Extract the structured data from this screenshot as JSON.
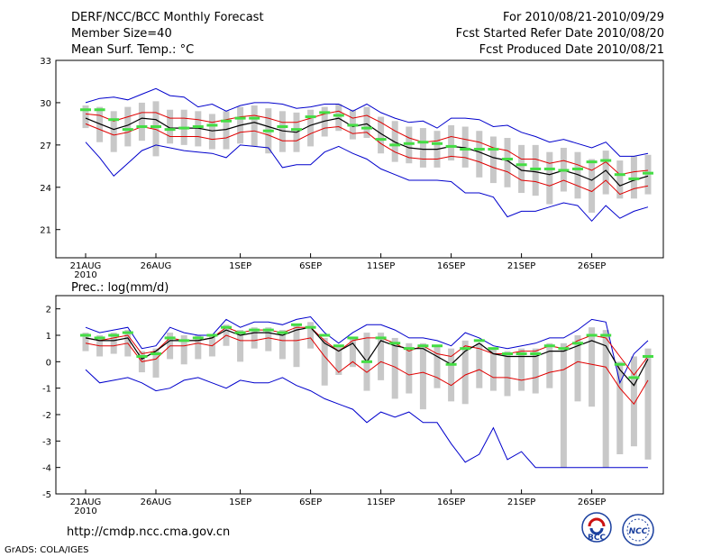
{
  "header": {
    "title": "DERF/NCC/BCC Monthly Forecast",
    "member_size": "Member Size=40",
    "variable": "Mean Surf. Temp.: °C",
    "period": "For 2010/08/21-2010/09/29",
    "started": "Fcst Started Refer Date 2010/08/20",
    "produced": "Fcst Produced Date 2010/08/21"
  },
  "footer": {
    "url": "http://cmdp.ncc.cma.gov.cn",
    "grads": "GrADS: COLA/IGES",
    "logo_bcc": "BCC",
    "logo_ncc": "NCC"
  },
  "colors": {
    "envelope": "#0000cc",
    "spread": "#e00000",
    "mean": "#000000",
    "bar": "#c8c8c8",
    "marker": "#44dd44"
  },
  "chart_data": [
    {
      "type": "line",
      "title": "Mean Surf. Temp.: °C",
      "xlabel": "",
      "ylabel": "°C",
      "x_start": "2010-08-21",
      "ylim": [
        19,
        33
      ],
      "yticks": [
        21,
        24,
        27,
        30,
        33
      ],
      "xticks": [
        {
          "day": 0,
          "label": "21AUG",
          "sub": "2010"
        },
        {
          "day": 5,
          "label": "26AUG"
        },
        {
          "day": 11,
          "label": "1SEP"
        },
        {
          "day": 16,
          "label": "6SEP"
        },
        {
          "day": 21,
          "label": "11SEP"
        },
        {
          "day": 26,
          "label": "16SEP"
        },
        {
          "day": 31,
          "label": "21SEP"
        },
        {
          "day": 36,
          "label": "26SEP"
        }
      ],
      "series": [
        {
          "name": "max",
          "values": [
            30.0,
            30.3,
            30.4,
            30.2,
            30.6,
            31.0,
            30.5,
            30.4,
            29.7,
            29.9,
            29.4,
            29.8,
            30.0,
            30.0,
            29.9,
            29.6,
            29.7,
            29.9,
            29.9,
            29.4,
            29.9,
            29.3,
            28.9,
            28.6,
            28.7,
            28.2,
            28.9,
            28.9,
            28.8,
            28.3,
            28.4,
            27.9,
            27.6,
            27.2,
            27.4,
            27.1,
            26.8,
            27.2,
            26.2,
            26.2,
            26.4
          ]
        },
        {
          "name": "upper",
          "values": [
            29.2,
            29.1,
            28.7,
            29.0,
            29.3,
            29.3,
            28.9,
            28.9,
            28.8,
            28.6,
            28.8,
            29.0,
            29.1,
            28.9,
            28.6,
            28.6,
            28.9,
            29.2,
            29.4,
            28.9,
            29.1,
            28.6,
            28.0,
            27.5,
            27.2,
            27.3,
            27.6,
            27.4,
            27.2,
            26.8,
            26.6,
            26.0,
            26.0,
            25.7,
            25.9,
            25.6,
            25.2,
            25.8,
            24.9,
            25.1,
            25.2
          ]
        },
        {
          "name": "mean",
          "values": [
            28.9,
            28.5,
            28.1,
            28.4,
            28.9,
            28.8,
            28.2,
            28.2,
            28.2,
            28.0,
            28.1,
            28.4,
            28.6,
            28.3,
            28.0,
            27.9,
            28.4,
            28.7,
            28.9,
            28.3,
            28.5,
            27.8,
            27.2,
            26.8,
            26.7,
            26.7,
            26.9,
            26.8,
            26.5,
            26.1,
            25.9,
            25.2,
            25.1,
            24.9,
            25.2,
            24.9,
            24.5,
            25.2,
            24.1,
            24.5,
            24.8
          ]
        },
        {
          "name": "lower",
          "values": [
            28.5,
            28.1,
            27.7,
            27.9,
            28.3,
            28.1,
            27.6,
            27.6,
            27.6,
            27.4,
            27.5,
            27.9,
            28.0,
            27.7,
            27.3,
            27.3,
            27.8,
            28.2,
            28.3,
            27.8,
            27.9,
            27.1,
            26.5,
            26.1,
            26.0,
            26.0,
            26.2,
            26.1,
            25.8,
            25.4,
            25.1,
            24.5,
            24.4,
            24.1,
            24.5,
            24.1,
            23.7,
            24.5,
            23.5,
            23.9,
            24.1
          ]
        },
        {
          "name": "min",
          "values": [
            27.2,
            26.1,
            24.8,
            25.7,
            26.6,
            27.0,
            26.8,
            26.6,
            26.5,
            26.4,
            26.1,
            27.0,
            26.9,
            26.8,
            25.4,
            25.6,
            25.6,
            26.5,
            26.9,
            26.4,
            26.0,
            25.3,
            24.9,
            24.5,
            24.5,
            24.5,
            24.4,
            23.6,
            23.6,
            23.3,
            21.9,
            22.3,
            22.3,
            22.6,
            22.9,
            22.7,
            21.6,
            22.7,
            21.8,
            22.3,
            22.6
          ]
        },
        {
          "name": "bar_top",
          "values": [
            29.8,
            29.7,
            29.4,
            29.7,
            30.0,
            30.1,
            29.5,
            29.5,
            29.4,
            29.2,
            29.4,
            29.7,
            29.8,
            29.6,
            29.4,
            29.3,
            29.5,
            29.7,
            29.9,
            29.5,
            29.7,
            29.0,
            28.7,
            28.3,
            28.2,
            28.0,
            28.4,
            28.3,
            28.0,
            27.6,
            27.5,
            27.0,
            27.0,
            26.5,
            26.8,
            26.5,
            26.0,
            26.6,
            25.9,
            26.2,
            26.3
          ]
        },
        {
          "name": "bar_bottom",
          "values": [
            28.2,
            27.2,
            26.5,
            26.9,
            27.3,
            26.2,
            27.1,
            27.0,
            26.9,
            26.7,
            26.7,
            27.1,
            26.9,
            26.4,
            26.5,
            26.5,
            26.9,
            27.6,
            28.0,
            27.4,
            27.5,
            26.4,
            25.8,
            25.7,
            25.4,
            25.4,
            25.9,
            25.4,
            24.7,
            24.3,
            24.0,
            23.6,
            23.4,
            22.8,
            23.7,
            23.2,
            22.2,
            23.5,
            23.2,
            23.2,
            23.5
          ]
        },
        {
          "name": "marker",
          "values": [
            29.5,
            29.5,
            28.8,
            28.1,
            28.3,
            28.3,
            28.1,
            28.2,
            28.3,
            28.4,
            28.7,
            28.9,
            28.9,
            28.0,
            28.3,
            28.1,
            29.0,
            29.3,
            29.1,
            28.4,
            28.2,
            27.4,
            27.0,
            27.1,
            27.2,
            27.1,
            26.9,
            26.7,
            26.7,
            26.7,
            26.0,
            25.6,
            25.3,
            25.3,
            25.2,
            25.3,
            25.8,
            25.9,
            24.9,
            24.6,
            25.0
          ]
        }
      ]
    },
    {
      "type": "line",
      "title": "Prec.: log(mm/d)",
      "xlabel": "",
      "ylabel": "log(mm/d)",
      "x_start": "2010-08-21",
      "ylim": [
        -5,
        2.5
      ],
      "yticks": [
        -5,
        -4,
        -3,
        -2,
        -1,
        0,
        1,
        2
      ],
      "xticks": [
        {
          "day": 0,
          "label": "21AUG",
          "sub": "2010"
        },
        {
          "day": 5,
          "label": "26AUG"
        },
        {
          "day": 11,
          "label": "1SEP"
        },
        {
          "day": 16,
          "label": "6SEP"
        },
        {
          "day": 21,
          "label": "11SEP"
        },
        {
          "day": 26,
          "label": "16SEP"
        },
        {
          "day": 31,
          "label": "21SEP"
        },
        {
          "day": 36,
          "label": "26SEP"
        }
      ],
      "series": [
        {
          "name": "max",
          "values": [
            1.3,
            1.1,
            1.2,
            1.3,
            0.5,
            0.6,
            1.3,
            1.1,
            1.0,
            1.0,
            1.6,
            1.3,
            1.5,
            1.5,
            1.4,
            1.6,
            1.7,
            1.1,
            0.7,
            1.1,
            1.4,
            1.4,
            1.2,
            0.9,
            0.9,
            0.8,
            0.6,
            1.1,
            0.9,
            0.6,
            0.5,
            0.6,
            0.7,
            0.9,
            0.9,
            1.2,
            1.6,
            1.5,
            -0.8,
            0.3,
            0.8
          ]
        },
        {
          "name": "upper",
          "values": [
            0.9,
            0.8,
            0.9,
            1.0,
            0.3,
            0.4,
            0.9,
            0.8,
            0.8,
            0.9,
            1.3,
            1.1,
            1.2,
            1.2,
            1.1,
            1.3,
            1.3,
            0.8,
            0.4,
            0.8,
            0.9,
            0.9,
            0.7,
            0.4,
            0.6,
            0.3,
            0.2,
            0.6,
            0.5,
            0.3,
            0.3,
            0.4,
            0.4,
            0.6,
            0.5,
            0.8,
            1.0,
            0.9,
            0.2,
            -0.5,
            0.2
          ]
        },
        {
          "name": "mean",
          "values": [
            0.9,
            0.8,
            0.8,
            0.9,
            0.1,
            0.4,
            0.8,
            0.8,
            0.8,
            0.9,
            1.2,
            1.0,
            1.1,
            1.1,
            1.0,
            1.2,
            1.3,
            0.7,
            0.4,
            0.7,
            0.0,
            0.8,
            0.6,
            0.5,
            0.5,
            0.2,
            -0.1,
            0.4,
            0.7,
            0.3,
            0.2,
            0.2,
            0.2,
            0.4,
            0.4,
            0.6,
            0.8,
            0.6,
            -0.3,
            -0.9,
            0.1
          ]
        },
        {
          "name": "lower",
          "values": [
            0.7,
            0.6,
            0.6,
            0.7,
            0.0,
            0.1,
            0.6,
            0.6,
            0.7,
            0.6,
            1.0,
            0.8,
            0.8,
            0.9,
            0.8,
            0.8,
            0.9,
            0.2,
            -0.4,
            0.0,
            -0.4,
            0.0,
            -0.2,
            -0.5,
            -0.4,
            -0.6,
            -0.9,
            -0.5,
            -0.3,
            -0.6,
            -0.6,
            -0.7,
            -0.6,
            -0.4,
            -0.3,
            0.0,
            -0.1,
            -0.2,
            -1.0,
            -1.6,
            -0.7
          ]
        },
        {
          "name": "min",
          "values": [
            -0.3,
            -0.8,
            -0.7,
            -0.6,
            -0.8,
            -1.1,
            -1.0,
            -0.7,
            -0.6,
            -0.8,
            -1.0,
            -0.7,
            -0.8,
            -0.8,
            -0.6,
            -0.9,
            -1.1,
            -1.4,
            -1.6,
            -1.8,
            -2.3,
            -1.9,
            -2.1,
            -1.9,
            -2.3,
            -2.3,
            -3.1,
            -3.8,
            -3.5,
            -2.5,
            -3.7,
            -3.4,
            -4.0,
            -4.0,
            -4.0,
            -4.0,
            -4.0,
            -4.0,
            -4.0,
            -4.0,
            -4.0
          ]
        },
        {
          "name": "bar_top",
          "values": [
            1.1,
            1.0,
            1.1,
            1.2,
            0.4,
            0.5,
            1.1,
            1.0,
            1.0,
            1.0,
            1.4,
            1.2,
            1.3,
            1.3,
            1.2,
            1.4,
            1.5,
            0.9,
            0.6,
            0.9,
            1.1,
            1.1,
            0.9,
            0.7,
            0.7,
            0.6,
            0.5,
            0.8,
            0.7,
            0.5,
            0.4,
            0.5,
            0.5,
            0.7,
            0.7,
            1.0,
            1.3,
            1.2,
            0.0,
            0.2,
            0.5
          ]
        },
        {
          "name": "bar_bottom",
          "values": [
            0.4,
            0.2,
            0.3,
            0.2,
            -0.4,
            -0.6,
            0.1,
            -0.1,
            0.1,
            0.2,
            0.6,
            0.0,
            0.5,
            0.4,
            0.1,
            -0.2,
            0.5,
            -0.9,
            -0.5,
            -0.2,
            -1.1,
            -0.7,
            -1.4,
            -1.2,
            -1.8,
            -1.0,
            -1.5,
            -1.6,
            -1.0,
            -1.1,
            -1.3,
            -1.1,
            -1.2,
            -1.0,
            -4.0,
            -1.5,
            -1.7,
            -4.0,
            -3.5,
            -3.2,
            -3.7
          ]
        },
        {
          "name": "marker",
          "values": [
            1.0,
            0.9,
            1.0,
            1.1,
            0.2,
            0.3,
            0.9,
            0.8,
            0.9,
            1.0,
            1.3,
            1.1,
            1.2,
            1.2,
            1.1,
            1.4,
            1.3,
            1.0,
            0.6,
            0.9,
            0.0,
            0.9,
            0.7,
            0.5,
            0.6,
            0.6,
            -0.1,
            0.5,
            0.8,
            0.5,
            0.3,
            0.3,
            0.3,
            0.6,
            0.5,
            0.7,
            1.0,
            1.0,
            -0.1,
            -0.6,
            0.2
          ]
        }
      ]
    }
  ]
}
